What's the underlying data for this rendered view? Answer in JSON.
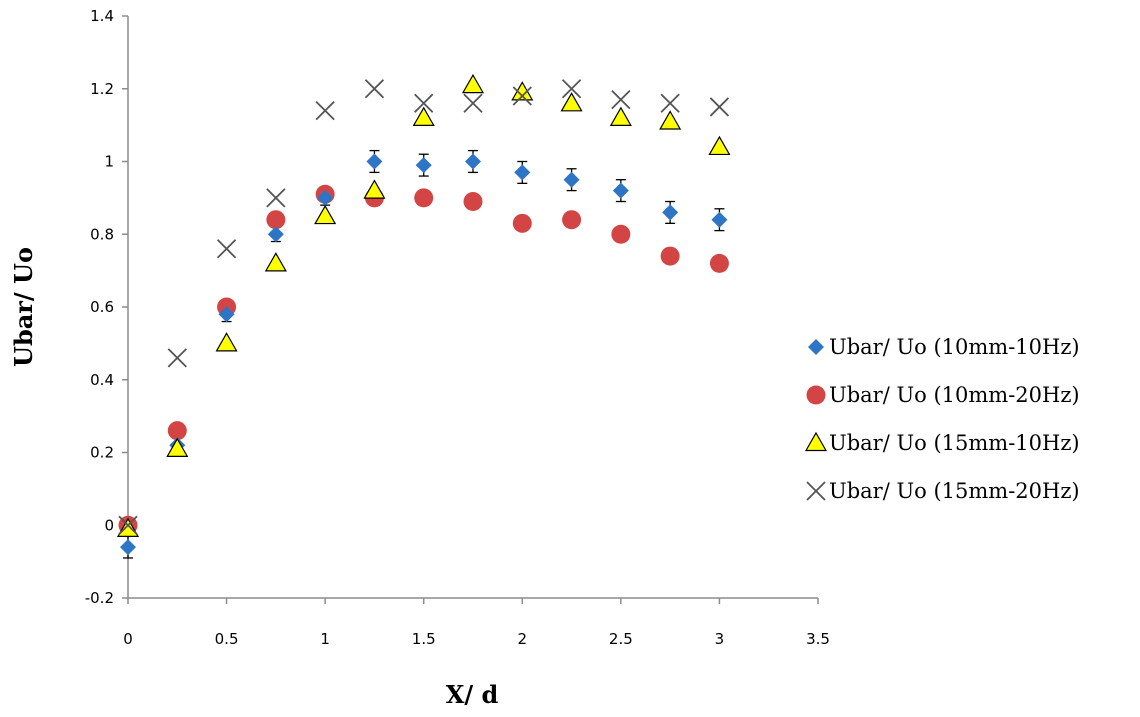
{
  "chart_data": {
    "type": "scatter",
    "title": "",
    "xlabel": "X/ d",
    "ylabel": "Ubar/ Uo",
    "xlim": [
      0,
      3.5
    ],
    "ylim": [
      -0.2,
      1.4
    ],
    "x_ticks": [
      "0",
      "0.5",
      "1",
      "1.5",
      "2",
      "2.5",
      "3",
      "3.5"
    ],
    "y_ticks": [
      "-0.2",
      "0",
      "0.2",
      "0.4",
      "0.6",
      "0.8",
      "1",
      "1.2",
      "1.4"
    ],
    "grid": false,
    "legend_position": "right",
    "x": [
      0,
      0.25,
      0.5,
      0.75,
      1,
      1.25,
      1.5,
      1.75,
      2,
      2.25,
      2.5,
      2.75,
      3
    ],
    "series": [
      {
        "name": "Ubar/ Uo (10mm-10Hz)",
        "marker": "diamond",
        "color": "#2E75C6",
        "values": [
          -0.06,
          0.22,
          0.58,
          0.8,
          0.9,
          1.0,
          0.99,
          1.0,
          0.97,
          0.95,
          0.92,
          0.86,
          0.84
        ],
        "error": [
          0.03,
          0.02,
          0.02,
          0.02,
          0.02,
          0.03,
          0.03,
          0.03,
          0.03,
          0.03,
          0.03,
          0.03,
          0.03
        ]
      },
      {
        "name": "Ubar/ Uo (10mm-20Hz)",
        "marker": "circle",
        "color": "#D34545",
        "values": [
          0.0,
          0.26,
          0.6,
          0.84,
          0.91,
          0.9,
          0.9,
          0.89,
          0.83,
          0.84,
          0.8,
          0.74,
          0.72
        ]
      },
      {
        "name": "Ubar/ Uo (15mm-10Hz)",
        "marker": "triangle",
        "color": "#FFFF00",
        "values": [
          -0.01,
          0.21,
          0.5,
          0.72,
          0.85,
          0.92,
          1.12,
          1.21,
          1.19,
          1.16,
          1.12,
          1.11,
          1.04
        ]
      },
      {
        "name": "Ubar/ Uo (15mm-20Hz)",
        "marker": "x",
        "color": "#555555",
        "values": [
          0.0,
          0.46,
          0.76,
          0.9,
          1.14,
          1.2,
          1.16,
          1.16,
          1.18,
          1.2,
          1.17,
          1.16,
          1.15
        ]
      }
    ]
  }
}
